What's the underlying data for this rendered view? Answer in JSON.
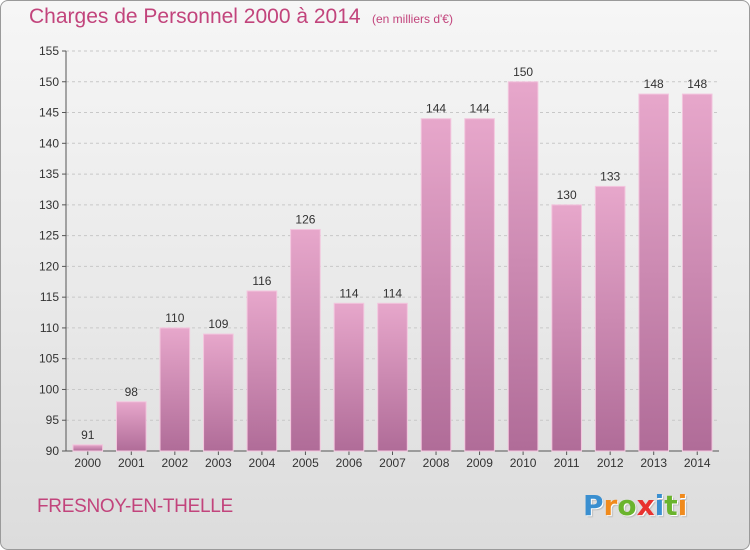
{
  "header": {
    "title": "Charges de Personnel 2000 à 2014",
    "subtitle": "(en milliers d'€)"
  },
  "footer": {
    "commune": "FRESNOY-EN-THELLE",
    "logo": {
      "letters": [
        "P",
        "r",
        "o",
        "x",
        "i",
        "t",
        "i"
      ],
      "colors": [
        "#3a8fd0",
        "#f08a1c",
        "#6ab42d",
        "#e8322f",
        "#3a8fd0",
        "#6ab42d",
        "#f08a1c"
      ]
    }
  },
  "colors": {
    "title": "#c2447c",
    "bar_top": "#e7a7cb",
    "bar_bottom": "#b06c98",
    "bar_edge": "#f3c6de",
    "grid": "#c8c8c8"
  },
  "chart_data": {
    "type": "bar",
    "title": "Charges de Personnel 2000 à 2014",
    "subtitle": "(en milliers d'€)",
    "xlabel": "",
    "ylabel": "",
    "categories": [
      "2000",
      "2001",
      "2002",
      "2003",
      "2004",
      "2005",
      "2006",
      "2007",
      "2008",
      "2009",
      "2010",
      "2011",
      "2012",
      "2013",
      "2014"
    ],
    "values": [
      91,
      98,
      110,
      109,
      116,
      126,
      114,
      114,
      144,
      144,
      150,
      130,
      133,
      148,
      148
    ],
    "ylim": [
      90,
      155
    ],
    "yticks": [
      90,
      95,
      100,
      105,
      110,
      115,
      120,
      125,
      130,
      135,
      140,
      145,
      150,
      155
    ],
    "grid": "horizontal, dashed",
    "legend": "none"
  }
}
